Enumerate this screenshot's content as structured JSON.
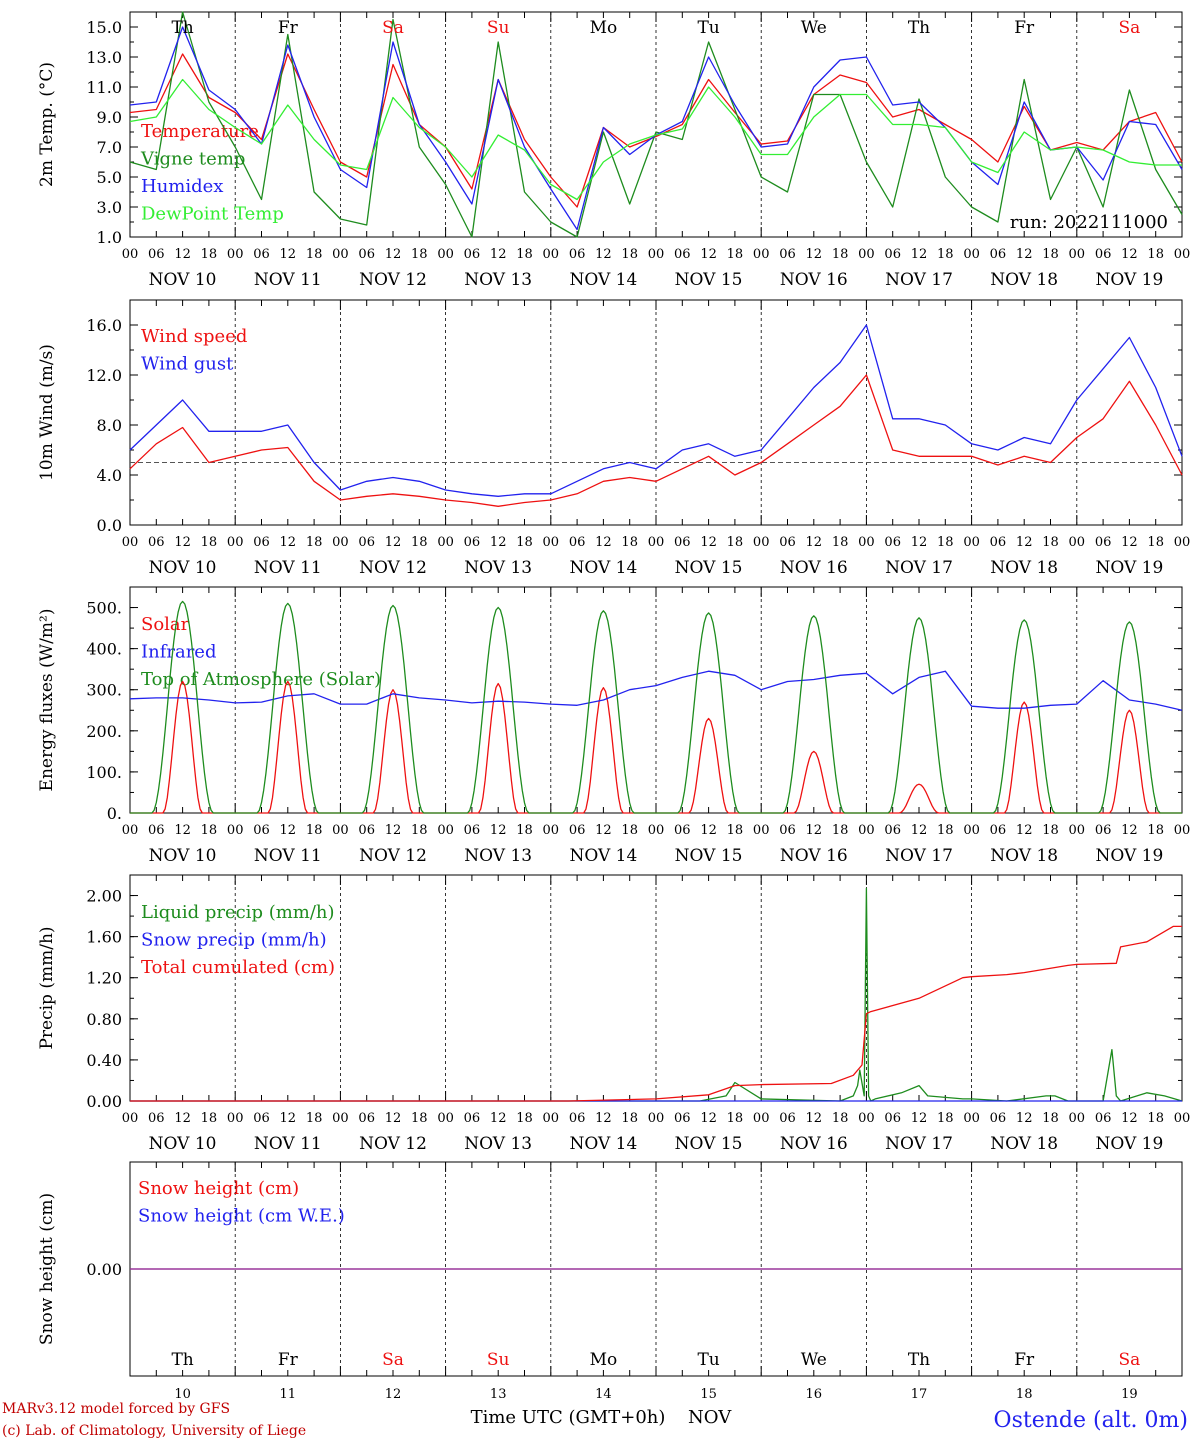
{
  "colors": {
    "red": "#ee1111",
    "darkgreen": "#1e8c1e",
    "blue": "#2222ee",
    "lightgreen": "#33ee33",
    "purple": "#8833aa",
    "weekend": "#ee1111",
    "weekday": "#000000"
  },
  "x_axis": {
    "hour_ticks": [
      "00",
      "06",
      "12",
      "18"
    ],
    "final_tick": "00",
    "dates": [
      "NOV 10",
      "NOV 11",
      "NOV 12",
      "NOV 13",
      "NOV 14",
      "NOV 15",
      "NOV 16",
      "NOV 17",
      "NOV 18",
      "NOV 19"
    ],
    "days": [
      {
        "label": "Th",
        "weekend": false
      },
      {
        "label": "Fr",
        "weekend": false
      },
      {
        "label": "Sa",
        "weekend": true
      },
      {
        "label": "Su",
        "weekend": true
      },
      {
        "label": "Mo",
        "weekend": false
      },
      {
        "label": "Tu",
        "weekend": false
      },
      {
        "label": "We",
        "weekend": false
      },
      {
        "label": "Th",
        "weekend": false
      },
      {
        "label": "Fr",
        "weekend": false
      },
      {
        "label": "Sa",
        "weekend": true
      }
    ],
    "day_numbers": [
      "10",
      "11",
      "12",
      "13",
      "14",
      "15",
      "16",
      "17",
      "18",
      "19"
    ],
    "title": "Time UTC (GMT+0h)",
    "month": "NOV"
  },
  "run_label": "run: 2022111000",
  "footer": {
    "line1": "MARv3.12 model forced by GFS",
    "line2": "(c) Lab. of Climatology, University of Liege",
    "station": "Ostende (alt. 0m)"
  },
  "chart_data": [
    {
      "type": "line",
      "ylabel": "2m Temp. (°C)",
      "ylim": [
        1.0,
        16.0
      ],
      "yticks": [
        1.0,
        3.0,
        5.0,
        7.0,
        9.0,
        11.0,
        13.0,
        15.0
      ],
      "ytick_labels": [
        "1.0",
        "3.0",
        "5.0",
        "7.0",
        "9.0",
        "11.0",
        "13.0",
        "15.0"
      ],
      "x": [
        0,
        6,
        12,
        18,
        24,
        30,
        36,
        42,
        48,
        54,
        60,
        66,
        72,
        78,
        84,
        90,
        96,
        102,
        108,
        114,
        120,
        126,
        132,
        138,
        144,
        150,
        156,
        162,
        168,
        174,
        180,
        186,
        192,
        198,
        204,
        210,
        216,
        222,
        228,
        234,
        240
      ],
      "series": [
        {
          "name": "Temperature",
          "color": "red",
          "values": [
            9.3,
            9.5,
            13.2,
            10.3,
            9.3,
            7.5,
            13.2,
            9.5,
            6.0,
            5.0,
            12.5,
            8.5,
            7.0,
            4.2,
            11.5,
            7.5,
            5.0,
            3.0,
            8.3,
            7.0,
            7.7,
            8.5,
            11.5,
            9.3,
            7.2,
            7.4,
            10.5,
            11.8,
            11.3,
            9.0,
            9.5,
            8.5,
            7.5,
            6.0,
            9.7,
            6.8,
            7.3,
            6.8,
            8.7,
            9.3,
            6.0
          ]
        },
        {
          "name": "Vigne temp",
          "color": "darkgreen",
          "values": [
            6.0,
            5.5,
            16.0,
            10.0,
            7.0,
            3.5,
            14.5,
            4.0,
            2.2,
            1.8,
            15.5,
            7.0,
            4.5,
            1.0,
            14.0,
            4.0,
            2.0,
            0.5,
            8.0,
            3.2,
            8.0,
            7.5,
            14.0,
            9.5,
            5.0,
            4.0,
            10.5,
            10.5,
            6.0,
            3.0,
            10.2,
            5.0,
            3.0,
            2.0,
            11.5,
            3.5,
            7.0,
            3.0,
            10.8,
            5.5,
            2.5
          ]
        },
        {
          "name": "Humidex",
          "color": "blue",
          "values": [
            9.8,
            10.0,
            15.0,
            10.8,
            9.5,
            7.2,
            13.8,
            9.0,
            5.5,
            4.3,
            14.0,
            8.5,
            6.0,
            3.2,
            11.5,
            7.0,
            4.2,
            1.5,
            8.3,
            6.5,
            7.8,
            8.7,
            13.0,
            9.8,
            7.0,
            7.2,
            11.0,
            12.8,
            13.0,
            9.8,
            10.0,
            8.3,
            6.0,
            4.5,
            10.0,
            6.8,
            7.0,
            4.8,
            8.7,
            8.5,
            5.5
          ]
        },
        {
          "name": "DewPoint Temp",
          "color": "lightgreen",
          "values": [
            8.7,
            9.0,
            11.5,
            9.5,
            8.3,
            7.2,
            9.8,
            7.5,
            5.8,
            5.5,
            10.3,
            8.3,
            7.0,
            5.0,
            7.8,
            6.8,
            4.5,
            3.5,
            6.0,
            7.2,
            7.8,
            8.2,
            11.0,
            9.0,
            6.5,
            6.5,
            9.0,
            10.5,
            10.5,
            8.5,
            8.5,
            8.3,
            6.0,
            5.3,
            8.0,
            6.8,
            7.0,
            6.8,
            6.0,
            5.8,
            5.8
          ]
        }
      ]
    },
    {
      "type": "line",
      "ylabel": "10m Wind (m/s)",
      "ylim": [
        0.0,
        18.0
      ],
      "yticks": [
        0.0,
        4.0,
        8.0,
        12.0,
        16.0
      ],
      "ytick_labels": [
        "0.0",
        "4.0",
        "8.0",
        "12.0",
        "16.0"
      ],
      "reference_line": 5.0,
      "x": [
        0,
        6,
        12,
        18,
        24,
        30,
        36,
        42,
        48,
        54,
        60,
        66,
        72,
        78,
        84,
        90,
        96,
        102,
        108,
        114,
        120,
        126,
        132,
        138,
        144,
        150,
        156,
        162,
        168,
        174,
        180,
        186,
        192,
        198,
        204,
        210,
        216,
        222,
        228,
        234,
        240
      ],
      "series": [
        {
          "name": "Wind speed",
          "color": "red",
          "values": [
            4.5,
            6.5,
            7.8,
            5.0,
            5.5,
            6.0,
            6.2,
            3.5,
            2.0,
            2.3,
            2.5,
            2.3,
            2.0,
            1.8,
            1.5,
            1.8,
            2.0,
            2.5,
            3.5,
            3.8,
            3.5,
            4.5,
            5.5,
            4.0,
            5.0,
            6.5,
            8.0,
            9.5,
            12.0,
            6.0,
            5.5,
            5.5,
            5.5,
            4.8,
            5.5,
            5.0,
            7.0,
            8.5,
            11.5,
            8.0,
            4.0
          ]
        },
        {
          "name": "Wind gust",
          "color": "blue",
          "values": [
            6.0,
            8.0,
            10.0,
            7.5,
            7.5,
            7.5,
            8.0,
            5.0,
            2.8,
            3.5,
            3.8,
            3.5,
            2.8,
            2.5,
            2.3,
            2.5,
            2.5,
            3.5,
            4.5,
            5.0,
            4.5,
            6.0,
            6.5,
            5.5,
            6.0,
            8.5,
            11.0,
            13.0,
            16.0,
            8.5,
            8.5,
            8.0,
            6.5,
            6.0,
            7.0,
            6.5,
            10.0,
            12.5,
            15.0,
            11.0,
            5.5
          ]
        }
      ]
    },
    {
      "type": "line",
      "ylabel": "Energy fluxes (W/m²)",
      "ylim": [
        0,
        550
      ],
      "yticks": [
        0,
        100,
        200,
        300,
        400,
        500
      ],
      "ytick_labels": [
        "0.",
        "100.",
        "200.",
        "300.",
        "400.",
        "500."
      ],
      "series": [
        {
          "name": "Solar",
          "color": "red",
          "peak_hour": 12,
          "half_width_hours": 4.5,
          "daily_peaks": [
            320,
            320,
            300,
            315,
            305,
            230,
            150,
            70,
            270,
            250
          ]
        },
        {
          "name": "Infrared",
          "color": "blue",
          "x": [
            0,
            6,
            12,
            18,
            24,
            30,
            36,
            42,
            48,
            54,
            60,
            66,
            72,
            78,
            84,
            90,
            96,
            102,
            108,
            114,
            120,
            126,
            132,
            138,
            144,
            150,
            156,
            162,
            168,
            174,
            180,
            186,
            192,
            198,
            204,
            210,
            216,
            222,
            228,
            234,
            240
          ],
          "values": [
            278,
            280,
            280,
            275,
            268,
            270,
            285,
            290,
            265,
            265,
            290,
            280,
            275,
            268,
            272,
            270,
            265,
            262,
            275,
            300,
            310,
            330,
            345,
            335,
            300,
            320,
            325,
            335,
            340,
            290,
            330,
            345,
            260,
            255,
            255,
            262,
            265,
            322,
            275,
            265,
            250
          ]
        },
        {
          "name": "Top of Atmosphere (Solar)",
          "color": "darkgreen",
          "peak_hour": 12,
          "half_width_hours": 7.0,
          "daily_peaks": [
            515,
            510,
            505,
            500,
            492,
            487,
            480,
            475,
            470,
            465
          ]
        }
      ]
    },
    {
      "type": "line",
      "ylabel": "Precip (mm/h)",
      "ylim": [
        0.0,
        2.2
      ],
      "yticks": [
        0.0,
        0.4,
        0.8,
        1.2,
        1.6,
        2.0
      ],
      "ytick_labels": [
        "0.00",
        "0.40",
        "0.80",
        "1.20",
        "1.60",
        "2.00"
      ],
      "series": [
        {
          "name": "Liquid precip (mm/h)",
          "color": "darkgreen",
          "x": [
            0,
            130,
            136,
            138,
            144,
            162,
            165,
            166,
            166.5,
            167.5,
            168,
            168.5,
            169,
            170,
            176,
            180,
            182,
            190,
            192,
            200,
            209,
            211,
            214,
            222,
            224,
            225,
            226,
            232,
            236,
            240
          ],
          "values": [
            0,
            0,
            0.05,
            0.18,
            0.02,
            0,
            0.05,
            0.15,
            0.3,
            0.05,
            2.07,
            0.05,
            0,
            0.02,
            0.08,
            0.15,
            0.05,
            0.02,
            0.02,
            0,
            0.05,
            0.05,
            0,
            0,
            0.5,
            0.05,
            0,
            0.08,
            0.05,
            0
          ]
        },
        {
          "name": "Snow precip (mm/h)",
          "color": "blue",
          "x": [
            0,
            240
          ],
          "values": [
            0,
            0
          ]
        },
        {
          "name": "Total cumulated (cm)",
          "color": "red",
          "x": [
            0,
            100,
            120,
            132,
            138,
            144,
            160,
            165,
            167,
            168,
            169,
            180,
            190,
            192,
            200,
            204,
            214,
            216,
            225,
            226,
            232,
            238,
            240
          ],
          "values": [
            0.0,
            0.0,
            0.02,
            0.06,
            0.15,
            0.16,
            0.17,
            0.25,
            0.35,
            0.85,
            0.87,
            1.0,
            1.2,
            1.21,
            1.23,
            1.25,
            1.32,
            1.33,
            1.34,
            1.5,
            1.55,
            1.7,
            1.7
          ]
        }
      ]
    },
    {
      "type": "line",
      "ylabel": "Snow height (cm)",
      "ylim": [
        -1.0,
        1.0
      ],
      "yticks": [
        0.0
      ],
      "ytick_labels": [
        "0.00"
      ],
      "series": [
        {
          "name": "Snow height (cm)",
          "color": "red",
          "x": [
            0,
            240
          ],
          "values": [
            0,
            0
          ]
        },
        {
          "name": "Snow height (cm W.E.)",
          "color": "blue",
          "x": [
            0,
            240
          ],
          "values": [
            0,
            0
          ]
        }
      ]
    }
  ]
}
